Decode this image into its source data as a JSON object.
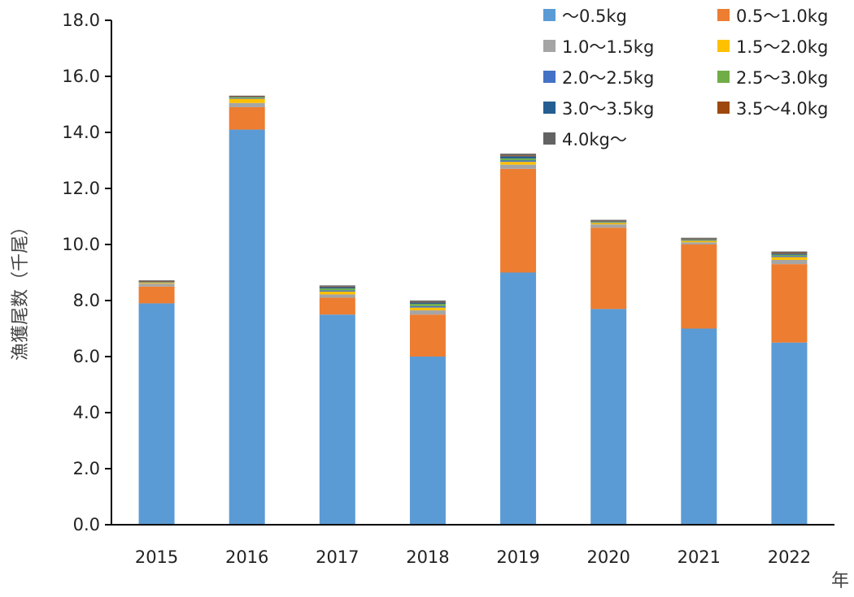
{
  "chart_data": {
    "type": "bar",
    "stacked": true,
    "title": "",
    "xlabel": "年",
    "ylabel": "漁獲尾数（千尾）",
    "ylim": [
      0,
      18
    ],
    "yticks": [
      "0.0",
      "2.0",
      "4.0",
      "6.0",
      "8.0",
      "10.0",
      "12.0",
      "14.0",
      "16.0",
      "18.0"
    ],
    "categories": [
      "2015",
      "2016",
      "2017",
      "2018",
      "2019",
      "2020",
      "2021",
      "2022"
    ],
    "grid": false,
    "legend_position": "top-right",
    "series": [
      {
        "name": "～0.5kg",
        "color": "#5B9BD5",
        "values": [
          7.9,
          14.1,
          7.5,
          6.0,
          9.0,
          7.7,
          7.0,
          6.5
        ]
      },
      {
        "name": "0.5～1.0kg",
        "color": "#ED7D31",
        "values": [
          0.6,
          0.8,
          0.6,
          1.5,
          3.7,
          2.9,
          3.0,
          2.8
        ]
      },
      {
        "name": "1.0～1.5kg",
        "color": "#A5A5A5",
        "values": [
          0.1,
          0.15,
          0.12,
          0.15,
          0.15,
          0.12,
          0.08,
          0.15
        ]
      },
      {
        "name": "1.5～2.0kg",
        "color": "#FFC000",
        "values": [
          0.03,
          0.15,
          0.1,
          0.1,
          0.1,
          0.05,
          0.05,
          0.1
        ]
      },
      {
        "name": "2.0～2.5kg",
        "color": "#4472C4",
        "values": [
          0.01,
          0.02,
          0.04,
          0.05,
          0.05,
          0.02,
          0.02,
          0.04
        ]
      },
      {
        "name": "2.5～3.0kg",
        "color": "#70AD47",
        "values": [
          0.01,
          0.03,
          0.07,
          0.08,
          0.07,
          0.02,
          0.02,
          0.04
        ]
      },
      {
        "name": "3.0～3.5kg",
        "color": "#255E91",
        "values": [
          0.01,
          0.02,
          0.05,
          0.05,
          0.08,
          0.02,
          0.02,
          0.04
        ]
      },
      {
        "name": "3.5～4.0kg",
        "color": "#9E480E",
        "values": [
          0.02,
          0.02,
          0.02,
          0.02,
          0.03,
          0.02,
          0.02,
          0.03
        ]
      },
      {
        "name": "4.0kg～",
        "color": "#636363",
        "values": [
          0.04,
          0.02,
          0.04,
          0.05,
          0.06,
          0.03,
          0.03,
          0.05
        ]
      }
    ]
  }
}
